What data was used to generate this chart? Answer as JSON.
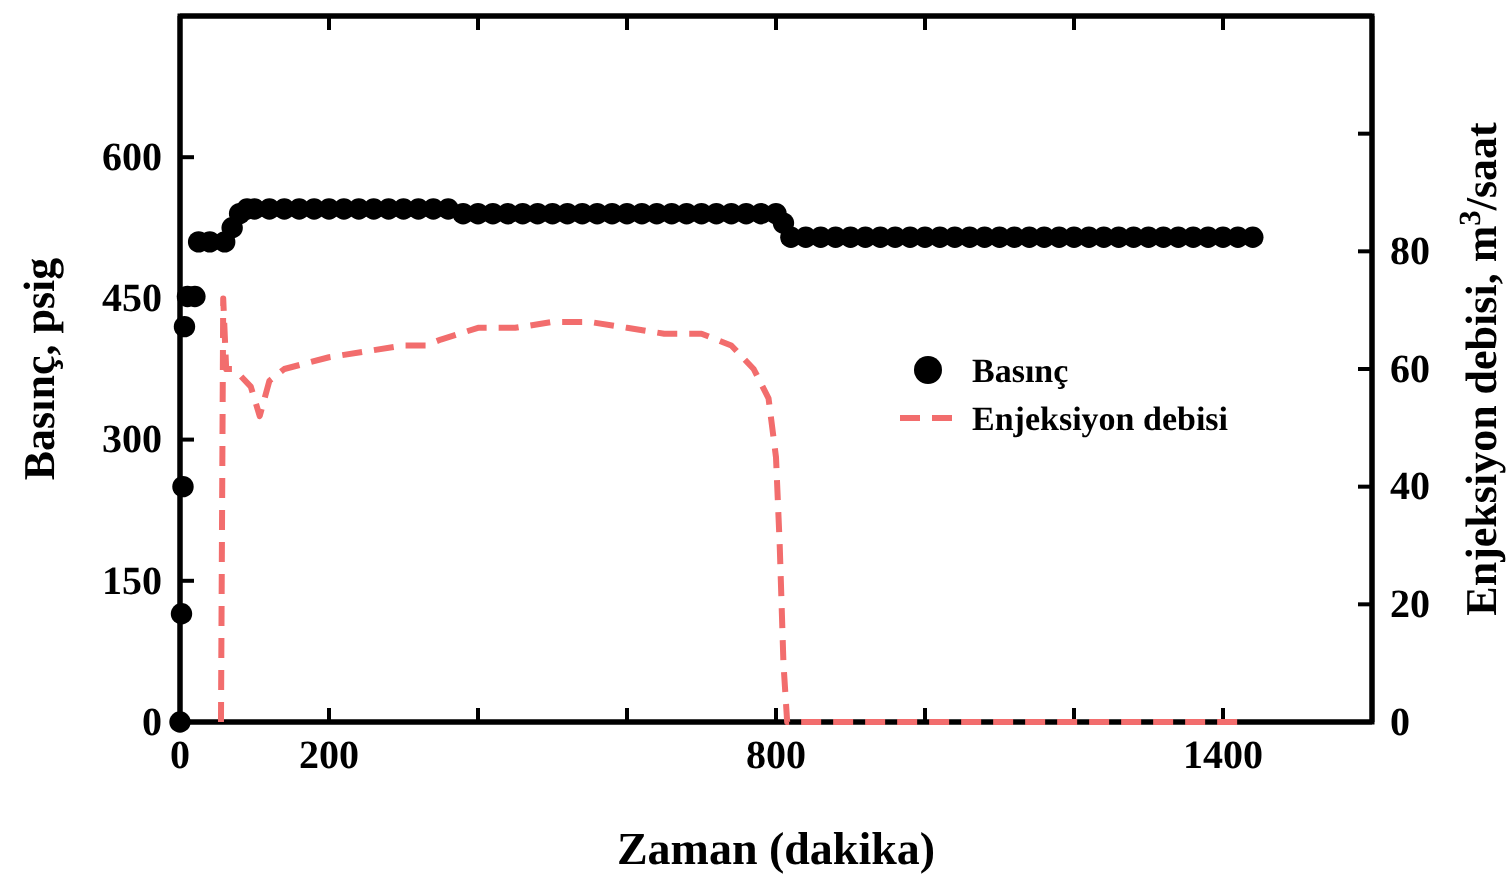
{
  "chart_data": {
    "type": "scatter",
    "xlabel": "Zaman (dakika)",
    "ylabel": "Basınç, psig",
    "y2label": "Enjeksiyon debisi, m$^{3}$/saat",
    "xlim": [
      0,
      1600
    ],
    "xticks": [
      0,
      {
        "value": 200,
        "label": "200"
      },
      {
        "value": 400,
        "label": null
      },
      {
        "value": 600,
        "label": null
      },
      {
        "value": 800,
        "label": "800"
      },
      {
        "value": 1000,
        "label": null
      },
      {
        "value": 1200,
        "label": null
      },
      {
        "value": 1400,
        "label": "1400"
      },
      {
        "value": 1600,
        "label": null
      }
    ],
    "ylim": [
      0,
      750
    ],
    "yticks": [
      0,
      150,
      300,
      450,
      600,
      {
        "value": 750,
        "label": null
      }
    ],
    "y2lim": [
      0,
      120
    ],
    "y2ticks": [
      0,
      20,
      40,
      60,
      80,
      {
        "value": 100,
        "label": null
      },
      {
        "value": 120,
        "label": null
      }
    ],
    "legend": "right",
    "series": [
      {
        "name": "Basınç",
        "marker": "circle",
        "color": "#000000",
        "x": [
          0,
          2,
          4,
          6,
          10,
          20,
          25,
          40,
          60,
          70,
          80,
          90,
          100,
          120,
          140,
          160,
          180,
          200,
          220,
          240,
          260,
          280,
          300,
          320,
          340,
          360,
          380,
          400,
          420,
          440,
          460,
          480,
          500,
          520,
          540,
          560,
          580,
          600,
          620,
          640,
          660,
          680,
          700,
          720,
          740,
          760,
          780,
          800,
          810,
          820,
          840,
          860,
          880,
          900,
          920,
          940,
          960,
          980,
          1000,
          1020,
          1040,
          1060,
          1080,
          1100,
          1120,
          1140,
          1160,
          1180,
          1200,
          1220,
          1240,
          1260,
          1280,
          1300,
          1320,
          1340,
          1360,
          1380,
          1400,
          1420,
          1440
        ],
        "values": [
          0,
          115,
          250,
          420,
          452,
          452,
          510,
          510,
          510,
          525,
          540,
          545,
          545,
          545,
          545,
          545,
          545,
          545,
          545,
          545,
          545,
          545,
          545,
          545,
          545,
          545,
          540,
          540,
          540,
          540,
          540,
          540,
          540,
          540,
          540,
          540,
          540,
          540,
          540,
          540,
          540,
          540,
          540,
          540,
          540,
          540,
          540,
          540,
          530,
          515,
          515,
          515,
          515,
          515,
          515,
          515,
          515,
          515,
          515,
          515,
          515,
          515,
          515,
          515,
          515,
          515,
          515,
          515,
          515,
          515,
          515,
          515,
          515,
          515,
          515,
          515,
          515,
          515,
          515,
          515,
          515
        ]
      },
      {
        "name": "Enjeksiyon debisi",
        "type": "line",
        "axis": "y2",
        "line_style": "dashed",
        "color": "#f26d6d",
        "x": [
          55,
          58,
          62,
          70,
          80,
          95,
          107,
          120,
          140,
          200,
          250,
          300,
          330,
          350,
          400,
          450,
          500,
          550,
          600,
          650,
          700,
          740,
          770,
          790,
          800,
          805,
          810,
          815,
          1430
        ],
        "values": [
          0,
          72,
          60,
          60,
          59,
          57,
          52,
          58,
          60,
          62,
          63,
          64,
          64,
          65,
          67,
          67,
          68,
          68,
          67,
          66,
          66,
          64,
          60,
          55,
          45,
          30,
          10,
          0,
          0
        ]
      }
    ]
  }
}
